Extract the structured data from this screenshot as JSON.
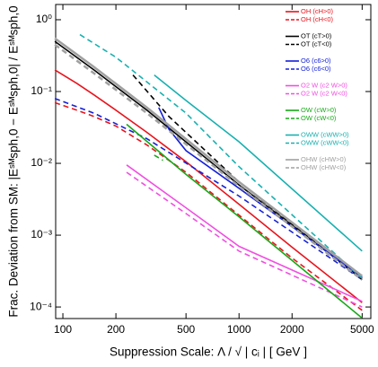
{
  "chart_data": {
    "type": "line",
    "xlabel": "Suppression Scale: Λ / √ | cᵢ |   [ GeV ]",
    "ylabel": "Frac. Deviation from SM: |Eˢᴹsph,0 − Eˢᴹsph,0| / Eˢᴹsph,0",
    "xscale": "log",
    "yscale": "log",
    "xlim": [
      91,
      5600
    ],
    "ylim": [
      6.9e-05,
      1.63
    ],
    "xticks": [
      100,
      200,
      500,
      1000,
      2000,
      5000
    ],
    "yticks": [
      {
        "value": 1,
        "label": "10⁰"
      },
      {
        "value": 0.1,
        "label": "10⁻¹"
      },
      {
        "value": 0.01,
        "label": "10⁻²"
      },
      {
        "value": 0.001,
        "label": "10⁻³"
      },
      {
        "value": 0.0001,
        "label": "10⁻⁴"
      }
    ],
    "series": [
      {
        "name": "OH (cH>0)",
        "color": "#e8141c",
        "dashed": false,
        "x": [
          90,
          120,
          150,
          200,
          300,
          500,
          1000,
          2000,
          5000
        ],
        "values": [
          0.2,
          0.13,
          0.09,
          0.055,
          0.027,
          0.0105,
          0.0027,
          0.00068,
          0.000115
        ]
      },
      {
        "name": "OH (cH<0)",
        "color": "#e8141c",
        "dashed": true,
        "x": [
          90,
          120,
          150,
          200,
          300,
          500,
          1000,
          2000,
          5000
        ],
        "values": [
          0.07,
          0.055,
          0.045,
          0.033,
          0.018,
          0.0075,
          0.0019,
          0.00048,
          9e-05
        ]
      },
      {
        "name": "OT (cT>0)",
        "color": "#000000",
        "dashed": false,
        "x": [
          90,
          150,
          300,
          1000,
          5000
        ],
        "values": [
          0.5,
          0.2,
          0.055,
          0.005,
          0.00025
        ]
      },
      {
        "name": "OT (cT<0)",
        "color": "#000000",
        "dashed": true,
        "x": [
          250,
          400,
          1000,
          5000
        ],
        "values": [
          0.17,
          0.045,
          0.0055,
          0.00024
        ]
      },
      {
        "name": "O6 (c6>0)",
        "color": "#1420d8",
        "dashed": false,
        "x": [
          350,
          400,
          500,
          1000,
          5000
        ],
        "values": [
          0.06,
          0.03,
          0.015,
          0.0045,
          0.00026
        ]
      },
      {
        "name": "O6 (c6<0)",
        "color": "#1420d8",
        "dashed": true,
        "x": [
          90,
          150,
          300,
          1000,
          5000
        ],
        "values": [
          0.08,
          0.05,
          0.022,
          0.0035,
          0.00024
        ]
      },
      {
        "name": "O2 W (c2 W>0)",
        "color": "#f050e0",
        "dashed": false,
        "x": [
          230,
          500,
          1000,
          5000
        ],
        "values": [
          0.0095,
          0.0024,
          0.0007,
          0.00012
        ]
      },
      {
        "name": "O2 W (c2 W<0)",
        "color": "#f050e0",
        "dashed": true,
        "x": [
          230,
          500,
          1000,
          5000
        ],
        "values": [
          0.0075,
          0.002,
          0.0006,
          0.0001
        ]
      },
      {
        "name": "OW (cW>0)",
        "color": "#18a818",
        "dashed": false,
        "x": [
          230,
          500,
          1000,
          5000
        ],
        "values": [
          0.035,
          0.007,
          0.0018,
          7e-05
        ]
      },
      {
        "name": "OW (cW<0)",
        "color": "#18a818",
        "dashed": true,
        "x": [
          330,
          370
        ],
        "values": [
          0.013,
          0.011
        ]
      },
      {
        "name": "OWW (cWW>0)",
        "color": "#18b0b0",
        "dashed": false,
        "x": [
          330,
          500,
          1000,
          5000
        ],
        "values": [
          0.17,
          0.075,
          0.02,
          0.0006
        ]
      },
      {
        "name": "OWW (cWW<0)",
        "color": "#18b0b0",
        "dashed": true,
        "x": [
          125,
          200,
          500,
          1000,
          5000
        ],
        "values": [
          0.62,
          0.3,
          0.05,
          0.009,
          0.00025
        ]
      },
      {
        "name": "OHW (cHW>0)",
        "color": "#a0a0a0",
        "dashed": false,
        "x": [
          90,
          150,
          300,
          1000,
          5000
        ],
        "values": [
          0.55,
          0.22,
          0.06,
          0.0055,
          0.00027
        ]
      },
      {
        "name": "OHW (cHW<0)",
        "color": "#a0a0a0",
        "dashed": true,
        "x": [
          90,
          150,
          300,
          1000,
          5000
        ],
        "values": [
          0.45,
          0.18,
          0.05,
          0.0048,
          0.00024
        ]
      }
    ]
  }
}
